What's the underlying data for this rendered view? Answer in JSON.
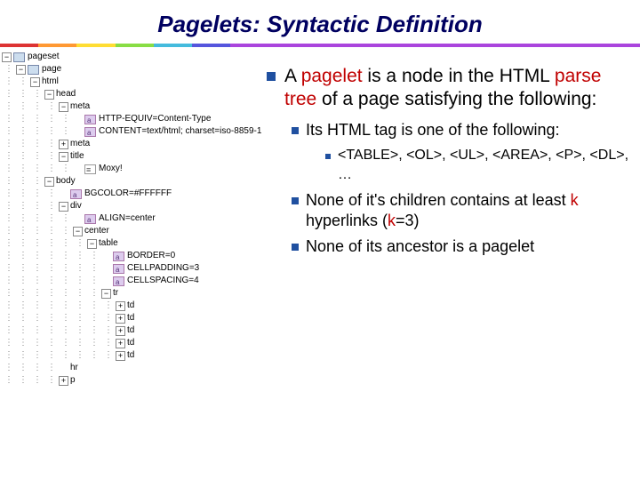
{
  "title": "Pagelets: Syntactic Definition",
  "tree": {
    "rows": [
      {
        "indent": 0,
        "exp": "-",
        "icon": "tag",
        "label": "pageset"
      },
      {
        "indent": 1,
        "exp": "-",
        "icon": "tag",
        "label": "page"
      },
      {
        "indent": 2,
        "exp": "-",
        "icon": "",
        "label": "html"
      },
      {
        "indent": 3,
        "exp": "-",
        "icon": "",
        "label": "head"
      },
      {
        "indent": 4,
        "exp": "-",
        "icon": "",
        "label": "meta"
      },
      {
        "indent": 5,
        "exp": "",
        "icon": "attr",
        "label": "HTTP-EQUIV=Content-Type"
      },
      {
        "indent": 5,
        "exp": "",
        "icon": "attr",
        "label": "CONTENT=text/html; charset=iso-8859-1"
      },
      {
        "indent": 4,
        "exp": "+",
        "icon": "",
        "label": "meta"
      },
      {
        "indent": 4,
        "exp": "-",
        "icon": "",
        "label": "title"
      },
      {
        "indent": 5,
        "exp": "",
        "icon": "text",
        "label": "Moxy!"
      },
      {
        "indent": 3,
        "exp": "-",
        "icon": "",
        "label": "body"
      },
      {
        "indent": 4,
        "exp": "",
        "icon": "attr",
        "label": "BGCOLOR=#FFFFFF"
      },
      {
        "indent": 4,
        "exp": "-",
        "icon": "",
        "label": "div"
      },
      {
        "indent": 5,
        "exp": "",
        "icon": "attr",
        "label": "ALIGN=center"
      },
      {
        "indent": 5,
        "exp": "-",
        "icon": "",
        "label": "center"
      },
      {
        "indent": 6,
        "exp": "-",
        "icon": "",
        "label": "table"
      },
      {
        "indent": 7,
        "exp": "",
        "icon": "attr",
        "label": "BORDER=0"
      },
      {
        "indent": 7,
        "exp": "",
        "icon": "attr",
        "label": "CELLPADDING=3"
      },
      {
        "indent": 7,
        "exp": "",
        "icon": "attr",
        "label": "CELLSPACING=4"
      },
      {
        "indent": 7,
        "exp": "-",
        "icon": "",
        "label": "tr"
      },
      {
        "indent": 8,
        "exp": "+",
        "icon": "",
        "label": "td"
      },
      {
        "indent": 8,
        "exp": "+",
        "icon": "",
        "label": "td"
      },
      {
        "indent": 8,
        "exp": "+",
        "icon": "",
        "label": "td"
      },
      {
        "indent": 8,
        "exp": "+",
        "icon": "",
        "label": "td"
      },
      {
        "indent": 8,
        "exp": "+",
        "icon": "",
        "label": "td"
      },
      {
        "indent": 4,
        "exp": "",
        "icon": "",
        "label": "hr"
      },
      {
        "indent": 4,
        "exp": "+",
        "icon": "",
        "label": "p"
      }
    ]
  },
  "main": {
    "intro_pre": "A ",
    "intro_em1": "pagelet",
    "intro_mid": " is a node in the HTML ",
    "intro_em2": "parse tree",
    "intro_post": " of a page satisfying the following:",
    "sub1": "Its HTML tag is one of the following:",
    "sub1_tags": "<TABLE>, <OL>, <UL>, <AREA>, <P>, <DL>, …",
    "sub2_pre": "None of it's children contains at least ",
    "sub2_k": "k",
    "sub2_mid": " hyperlinks (",
    "sub2_k2": "k",
    "sub2_post": "=3)",
    "sub3": "None of its ancestor is a pagelet"
  }
}
